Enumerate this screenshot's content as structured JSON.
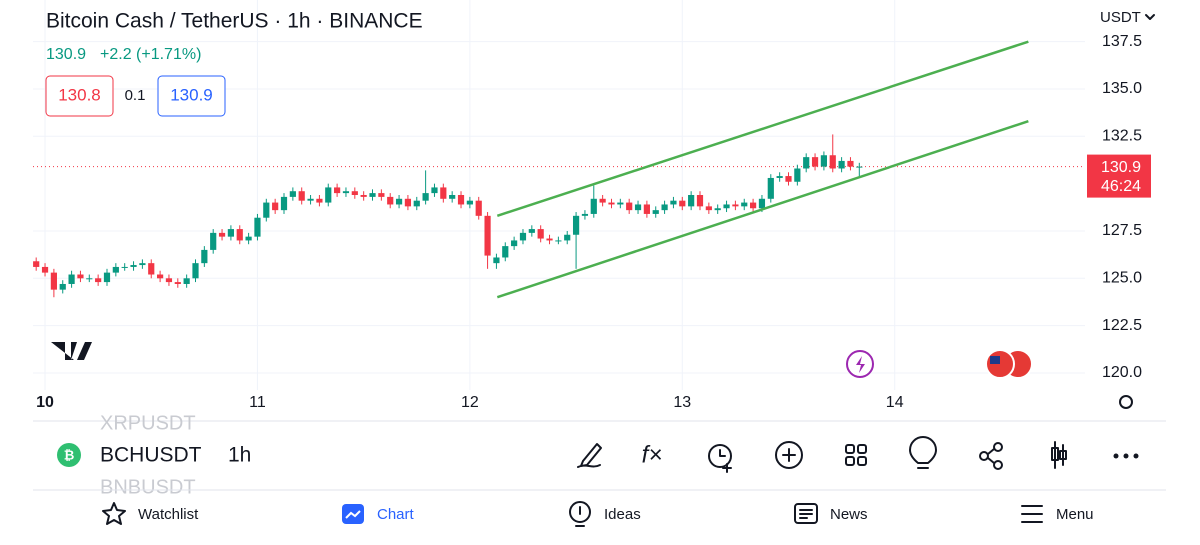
{
  "header": {
    "title": "Bitcoin Cash / TetherUS · 1h · BINANCE",
    "last": 130.9,
    "change": "+2.2 (+1.71%)",
    "bid": 130.8,
    "spread": 0.1,
    "ask": 130.9,
    "currency": "USDT"
  },
  "chart_data": {
    "type": "candlestick",
    "up_color": "#089981",
    "down_color": "#f23645",
    "x": [
      -1,
      0,
      1,
      2,
      3,
      4,
      5,
      6,
      7,
      8,
      9,
      10,
      11,
      12,
      13,
      14,
      15,
      16,
      17,
      18,
      19,
      20,
      21,
      22,
      23,
      24,
      25,
      26,
      27,
      28,
      29,
      30,
      31,
      32,
      33,
      34,
      35,
      36,
      37,
      38,
      39,
      40,
      41,
      42,
      43,
      44,
      45,
      46,
      47,
      48,
      49,
      50,
      51,
      52,
      53,
      54,
      55,
      56,
      57,
      58,
      59,
      60,
      61,
      62,
      63,
      64,
      65,
      66,
      67,
      68,
      69,
      70,
      71,
      72,
      73,
      74,
      75,
      76,
      77,
      78,
      79,
      80,
      81,
      82,
      83,
      84,
      85,
      86,
      87,
      88,
      89,
      90,
      91,
      92
    ],
    "open": [
      125.9,
      125.6,
      125.3,
      124.4,
      124.7,
      125.2,
      125.0,
      125.0,
      124.8,
      125.3,
      125.6,
      125.6,
      125.7,
      125.8,
      125.2,
      125.0,
      124.8,
      124.7,
      125.0,
      125.8,
      126.5,
      127.4,
      127.2,
      127.6,
      127.0,
      127.2,
      128.2,
      129.0,
      128.6,
      129.3,
      129.6,
      129.1,
      129.2,
      129.0,
      129.8,
      129.5,
      129.6,
      129.4,
      129.3,
      129.5,
      129.3,
      128.9,
      129.2,
      128.8,
      129.1,
      129.5,
      129.8,
      129.2,
      129.4,
      128.9,
      129.1,
      128.3,
      125.8,
      126.1,
      126.7,
      127.0,
      127.4,
      127.6,
      127.1,
      127.0,
      127.0,
      127.3,
      128.3,
      128.4,
      129.2,
      129.0,
      128.9,
      129.0,
      128.6,
      128.9,
      128.4,
      128.6,
      128.9,
      129.1,
      128.8,
      129.4,
      128.8,
      128.6,
      128.7,
      128.9,
      128.8,
      129.0,
      128.7,
      129.2,
      130.3,
      130.4,
      130.1,
      130.8,
      131.4,
      130.9,
      131.5,
      130.8,
      131.2,
      130.9
    ],
    "high": [
      126.1,
      125.8,
      125.5,
      124.9,
      125.4,
      125.4,
      125.2,
      125.2,
      125.5,
      125.8,
      125.8,
      125.9,
      126.0,
      126.0,
      125.4,
      125.2,
      125.0,
      125.2,
      126.0,
      126.7,
      127.6,
      127.6,
      127.8,
      127.8,
      127.4,
      128.4,
      129.2,
      129.2,
      129.5,
      129.8,
      129.8,
      129.4,
      129.4,
      130.0,
      130.0,
      129.8,
      129.8,
      129.6,
      129.7,
      129.7,
      129.5,
      129.4,
      129.4,
      129.3,
      130.7,
      130.0,
      130.0,
      129.6,
      129.6,
      129.3,
      129.3,
      128.5,
      126.3,
      126.9,
      127.2,
      127.6,
      127.8,
      127.8,
      127.3,
      127.2,
      127.5,
      128.5,
      128.6,
      129.9,
      129.4,
      129.2,
      129.2,
      129.2,
      129.1,
      129.1,
      128.8,
      129.1,
      129.3,
      129.3,
      129.6,
      129.6,
      129.0,
      128.9,
      129.1,
      129.1,
      129.2,
      129.2,
      129.4,
      130.5,
      130.6,
      130.6,
      131.0,
      131.6,
      131.6,
      131.7,
      132.6,
      131.4,
      131.4,
      131.1
    ],
    "low": [
      125.4,
      125.1,
      124.0,
      124.2,
      124.5,
      124.8,
      124.8,
      124.6,
      124.6,
      125.1,
      125.4,
      125.4,
      125.5,
      125.0,
      124.8,
      124.6,
      124.5,
      124.5,
      124.8,
      125.6,
      126.3,
      127.0,
      127.0,
      126.8,
      126.8,
      127.0,
      128.0,
      128.4,
      128.4,
      129.1,
      128.9,
      128.9,
      128.8,
      128.8,
      129.3,
      129.3,
      129.2,
      129.1,
      129.1,
      129.1,
      128.7,
      128.7,
      128.6,
      128.6,
      128.9,
      129.3,
      129.0,
      129.0,
      128.7,
      128.7,
      128.1,
      125.5,
      125.5,
      125.9,
      126.5,
      126.8,
      127.2,
      126.9,
      126.8,
      126.8,
      126.8,
      125.5,
      128.1,
      128.2,
      128.8,
      128.7,
      128.7,
      128.4,
      128.4,
      128.2,
      128.2,
      128.4,
      128.7,
      128.6,
      128.6,
      128.6,
      128.4,
      128.4,
      128.5,
      128.6,
      128.6,
      128.5,
      128.5,
      129.0,
      130.1,
      129.9,
      129.9,
      130.6,
      130.7,
      130.7,
      130.6,
      130.6,
      130.7,
      130.4
    ],
    "close": [
      125.6,
      125.3,
      124.4,
      124.7,
      125.2,
      125.0,
      125.0,
      124.8,
      125.3,
      125.6,
      125.6,
      125.7,
      125.8,
      125.2,
      125.0,
      124.8,
      124.7,
      125.0,
      125.8,
      126.5,
      127.4,
      127.2,
      127.6,
      127.0,
      127.2,
      128.2,
      129.0,
      128.6,
      129.3,
      129.6,
      129.1,
      129.2,
      129.0,
      129.8,
      129.5,
      129.6,
      129.4,
      129.3,
      129.5,
      129.3,
      128.9,
      129.2,
      128.8,
      129.1,
      129.5,
      129.8,
      129.2,
      129.4,
      128.9,
      129.1,
      128.3,
      126.2,
      126.1,
      126.7,
      127.0,
      127.4,
      127.6,
      127.1,
      127.0,
      127.0,
      127.3,
      128.3,
      128.4,
      129.2,
      129.0,
      128.9,
      129.0,
      128.6,
      128.9,
      128.4,
      128.6,
      128.9,
      129.1,
      128.8,
      129.4,
      128.8,
      128.6,
      128.7,
      128.9,
      128.8,
      129.0,
      128.7,
      129.2,
      130.3,
      130.4,
      130.1,
      130.8,
      131.4,
      130.9,
      131.5,
      130.8,
      131.2,
      130.9,
      130.9
    ],
    "xlim": [
      -1.36,
      117.5
    ],
    "ylim": [
      119.1,
      139.7
    ],
    "xticks": [
      {
        "value": 0,
        "label": "10"
      },
      {
        "value": 24,
        "label": "11"
      },
      {
        "value": 48,
        "label": "12"
      },
      {
        "value": 72,
        "label": "13"
      },
      {
        "value": 96,
        "label": "14"
      }
    ],
    "yticks": [
      {
        "value": 120,
        "label": "120.0"
      },
      122.5,
      {
        "value": 125,
        "label": "125.0"
      },
      127.5,
      132.5,
      {
        "value": 135,
        "label": "135.0"
      },
      137.5
    ],
    "grid": true,
    "channel_color": "#4caf50",
    "channels": [
      {
        "x": [
          51.1,
          111.1
        ],
        "y": [
          128.3,
          137.5
        ]
      },
      {
        "x": [
          51.1,
          111.1
        ],
        "y": [
          124.0,
          133.3
        ]
      }
    ],
    "price_label": 130.9,
    "countdown": "46:24"
  },
  "symbols": {
    "prev": "XRPUSDT",
    "current": "BCHUSDT",
    "interval": "1h",
    "next": "BNBUSDT"
  },
  "nav": [
    "Watchlist",
    "Chart",
    "Ideas",
    "News",
    "Menu"
  ]
}
